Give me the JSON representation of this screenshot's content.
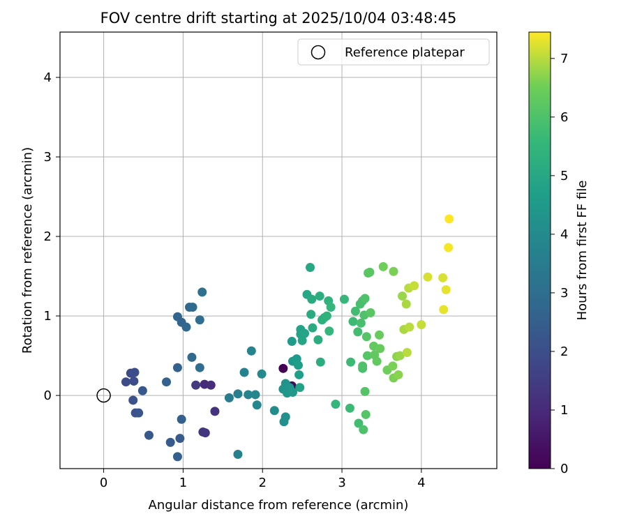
{
  "chart_data": {
    "type": "scatter",
    "title": "FOV centre drift starting at 2025/10/04 03:48:45",
    "xlabel": "Angular distance from reference (arcmin)",
    "ylabel": "Rotation from reference (arcmin)",
    "xlim": [
      -0.55,
      4.95
    ],
    "ylim": [
      -0.92,
      4.57
    ],
    "xticks": [
      "0",
      "1",
      "2",
      "3",
      "4"
    ],
    "yticks": [
      "0",
      "1",
      "2",
      "3",
      "4"
    ],
    "grid": true,
    "legend": {
      "placement": "top-right",
      "entries": [
        "Reference platepar"
      ]
    },
    "reference_point": {
      "x": 0,
      "y": 0
    },
    "colorbar": {
      "label": "Hours from first FF file",
      "colormap": "viridis",
      "range": [
        0,
        7.45
      ],
      "ticks": [
        "0",
        "1",
        "2",
        "3",
        "4",
        "5",
        "6",
        "7"
      ]
    },
    "points": [
      [
        2.26,
        0.34,
        0.0
      ],
      [
        2.37,
        0.12,
        0.2
      ],
      [
        2.36,
        0.08,
        0.4
      ],
      [
        1.27,
        0.14,
        1.0
      ],
      [
        1.35,
        0.13,
        1.1
      ],
      [
        1.4,
        -0.2,
        1.2
      ],
      [
        1.28,
        -0.47,
        1.3
      ],
      [
        1.25,
        -0.46,
        1.3
      ],
      [
        1.16,
        0.13,
        1.4
      ],
      [
        0.28,
        0.17,
        1.9
      ],
      [
        0.34,
        0.28,
        1.9
      ],
      [
        0.39,
        0.29,
        2.0
      ],
      [
        0.38,
        0.18,
        2.0
      ],
      [
        0.37,
        -0.06,
        2.1
      ],
      [
        0.4,
        -0.22,
        2.1
      ],
      [
        0.44,
        -0.22,
        2.2
      ],
      [
        0.49,
        0.06,
        2.3
      ],
      [
        0.57,
        -0.5,
        2.3
      ],
      [
        0.84,
        -0.59,
        2.4
      ],
      [
        0.96,
        -0.54,
        2.4
      ],
      [
        0.98,
        -0.3,
        2.5
      ],
      [
        0.93,
        -0.77,
        2.5
      ],
      [
        0.79,
        0.17,
        2.6
      ],
      [
        0.93,
        0.35,
        2.6
      ],
      [
        0.93,
        0.99,
        2.7
      ],
      [
        0.98,
        0.92,
        2.7
      ],
      [
        1.04,
        0.86,
        2.8
      ],
      [
        1.08,
        1.11,
        2.8
      ],
      [
        1.12,
        1.11,
        2.9
      ],
      [
        1.11,
        0.48,
        2.9
      ],
      [
        1.21,
        0.95,
        3.0
      ],
      [
        1.21,
        0.35,
        3.0
      ],
      [
        1.24,
        1.3,
        3.1
      ],
      [
        1.58,
        -0.03,
        3.5
      ],
      [
        1.69,
        0.02,
        3.6
      ],
      [
        1.69,
        -0.74,
        3.7
      ],
      [
        1.77,
        0.29,
        3.7
      ],
      [
        1.82,
        0.01,
        3.8
      ],
      [
        1.86,
        0.56,
        3.8
      ],
      [
        1.91,
        0.01,
        3.9
      ],
      [
        1.93,
        -0.12,
        3.9
      ],
      [
        1.99,
        0.27,
        4.0
      ],
      [
        2.15,
        -0.19,
        4.1
      ],
      [
        2.27,
        -0.33,
        4.2
      ],
      [
        2.29,
        -0.27,
        4.2
      ],
      [
        2.26,
        0.08,
        4.3
      ],
      [
        2.29,
        0.15,
        4.3
      ],
      [
        2.31,
        0.03,
        4.4
      ],
      [
        2.34,
        0.1,
        4.4
      ],
      [
        2.38,
        0.04,
        4.5
      ],
      [
        2.38,
        0.43,
        4.5
      ],
      [
        2.37,
        0.68,
        4.6
      ],
      [
        2.43,
        0.46,
        4.6
      ],
      [
        2.45,
        0.38,
        4.7
      ],
      [
        2.46,
        0.26,
        4.7
      ],
      [
        2.47,
        0.1,
        4.8
      ],
      [
        2.48,
        0.83,
        4.8
      ],
      [
        2.48,
        0.77,
        4.8
      ],
      [
        2.5,
        0.69,
        4.9
      ],
      [
        2.53,
        0.78,
        4.9
      ],
      [
        2.56,
        1.27,
        5.0
      ],
      [
        2.6,
        1.61,
        5.0
      ],
      [
        2.62,
        1.21,
        5.1
      ],
      [
        2.61,
        1.02,
        5.1
      ],
      [
        2.63,
        0.85,
        5.1
      ],
      [
        2.7,
        0.7,
        5.2
      ],
      [
        2.72,
        1.25,
        5.2
      ],
      [
        2.73,
        0.42,
        5.2
      ],
      [
        2.75,
        0.95,
        5.3
      ],
      [
        2.78,
        0.98,
        5.3
      ],
      [
        2.81,
        1.0,
        5.4
      ],
      [
        2.83,
        1.19,
        5.4
      ],
      [
        2.86,
        1.11,
        5.5
      ],
      [
        2.84,
        0.81,
        5.5
      ],
      [
        2.92,
        -0.11,
        5.5
      ],
      [
        3.03,
        1.21,
        5.6
      ],
      [
        3.1,
        -0.16,
        5.7
      ],
      [
        3.11,
        0.42,
        5.7
      ],
      [
        3.14,
        0.93,
        5.7
      ],
      [
        3.17,
        1.06,
        5.8
      ],
      [
        3.2,
        0.8,
        5.8
      ],
      [
        3.21,
        -0.35,
        5.8
      ],
      [
        3.23,
        1.15,
        5.9
      ],
      [
        3.24,
        0.91,
        5.9
      ],
      [
        3.26,
        1.19,
        5.9
      ],
      [
        3.26,
        0.34,
        5.9
      ],
      [
        3.26,
        0.37,
        6.0
      ],
      [
        3.27,
        -0.43,
        6.0
      ],
      [
        3.29,
        1.22,
        6.0
      ],
      [
        3.28,
        1.01,
        6.0
      ],
      [
        3.29,
        0.05,
        6.1
      ],
      [
        3.3,
        -0.24,
        6.1
      ],
      [
        3.31,
        0.74,
        6.1
      ],
      [
        3.32,
        0.5,
        6.1
      ],
      [
        3.33,
        1.54,
        6.2
      ],
      [
        3.35,
        1.55,
        6.2
      ],
      [
        3.36,
        1.04,
        6.2
      ],
      [
        3.4,
        0.62,
        6.3
      ],
      [
        3.41,
        0.51,
        6.3
      ],
      [
        3.44,
        0.43,
        6.3
      ],
      [
        3.47,
        0.76,
        6.4
      ],
      [
        3.48,
        0.59,
        6.4
      ],
      [
        3.52,
        1.62,
        6.5
      ],
      [
        3.57,
        0.32,
        6.5
      ],
      [
        3.64,
        0.37,
        6.6
      ],
      [
        3.65,
        1.56,
        6.6
      ],
      [
        3.65,
        0.22,
        6.6
      ],
      [
        3.69,
        0.49,
        6.7
      ],
      [
        3.71,
        0.26,
        6.7
      ],
      [
        3.73,
        0.5,
        6.8
      ],
      [
        3.76,
        1.25,
        6.8
      ],
      [
        3.78,
        0.83,
        6.9
      ],
      [
        3.81,
        1.15,
        6.9
      ],
      [
        3.82,
        0.54,
        7.0
      ],
      [
        3.84,
        1.35,
        7.0
      ],
      [
        3.85,
        0.86,
        7.0
      ],
      [
        3.91,
        1.38,
        7.1
      ],
      [
        4.0,
        0.89,
        7.1
      ],
      [
        4.08,
        1.49,
        7.2
      ],
      [
        4.27,
        1.48,
        7.2
      ],
      [
        4.28,
        1.08,
        7.3
      ],
      [
        4.31,
        1.33,
        7.3
      ],
      [
        4.34,
        1.86,
        7.4
      ],
      [
        4.35,
        2.22,
        7.45
      ]
    ]
  }
}
